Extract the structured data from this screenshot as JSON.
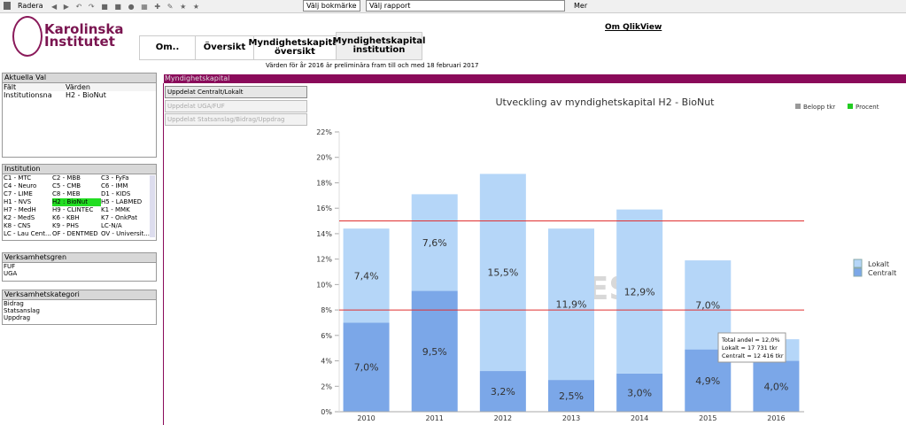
{
  "toolbar": {
    "clear": "Radera",
    "bookmark": "Välj bokmärke",
    "report": "Välj rapport",
    "more": "Mer"
  },
  "header": {
    "logo_line1": "Karolinska",
    "logo_line2": "Institutet",
    "tabs": [
      "Om..",
      "Översikt",
      "Myndighetskapital översikt",
      "Myndighetskapital institution"
    ],
    "about": "Om QlikView",
    "note": "Värden för år 2016 är preliminära fram till och med 18 februari 2017"
  },
  "current_selections": {
    "title": "Aktuella Val",
    "col_field": "Fält",
    "col_values": "Värden",
    "rows": [
      [
        "Institutionsna",
        "H2 - BioNut"
      ]
    ]
  },
  "institution": {
    "title": "Institution",
    "items": [
      "C1 - MTC",
      "C2 - MBB",
      "C3 - FyFa",
      "C4 - Neuro",
      "C5 - CMB",
      "C6 - IMM",
      "C7 - LIME",
      "C8 - MEB",
      "D1 - KIDS",
      "H1 - NVS",
      "H2 : BioNut",
      "H5 - LABMED",
      "H7 - MedH",
      "H9 - CLINTEC",
      "K1 - MMK",
      "K2 - MedS",
      "K6 - KBH",
      "K7 - OnkPat",
      "K8 - CNS",
      "K9 - PHS",
      "LC-N/A",
      "LC - Lau Cent...",
      "OF - DENTMED",
      "OV - Universit..."
    ]
  },
  "verksamhetsgren": {
    "title": "Verksamhetsgren",
    "items": [
      "FUF",
      "UGA"
    ]
  },
  "verksamhetskategori": {
    "title": "Verksamhetskategori",
    "items": [
      "Bidrag",
      "Statsanslag",
      "Uppdrag"
    ]
  },
  "section": {
    "title": "Myndighetskapital",
    "buttons": [
      "Uppdelat Centralt/Lokalt",
      "Uppdelat UGA/FUF",
      "Uppdelat Statsanslag/Bidrag/Uppdrag"
    ]
  },
  "chart_data": {
    "type": "bar",
    "stacked": true,
    "title": "Utveckling av myndighetskapital H2 - BioNut",
    "categories": [
      "2010",
      "2011",
      "2012",
      "2013",
      "2014",
      "2015",
      "2016"
    ],
    "series": [
      {
        "name": "Centralt",
        "color": "#7ba7e8",
        "values": [
          7.0,
          9.5,
          3.2,
          2.5,
          3.0,
          4.9,
          4.0
        ],
        "value_labels": [
          "7,0%",
          "9,5%",
          "3,2%",
          "2,5%",
          "3,0%",
          "4,9%",
          "4,0%"
        ]
      },
      {
        "name": "Lokalt",
        "color": "#b5d6f8",
        "values": [
          7.4,
          7.6,
          15.5,
          11.9,
          12.9,
          7.0,
          1.7
        ],
        "value_labels": [
          "7,4%",
          "7,6%",
          "15,5%",
          "11,9%",
          "12,9%",
          "7,0%",
          null
        ]
      }
    ],
    "ylim": [
      0,
      22
    ],
    "yticks": [
      {
        "value": 0,
        "label": "0%"
      },
      {
        "value": 2,
        "label": "2%"
      },
      {
        "value": 4,
        "label": "4%"
      },
      {
        "value": 6,
        "label": "6%"
      },
      {
        "value": 8,
        "label": "8%"
      },
      {
        "value": 10,
        "label": "10%"
      },
      {
        "value": 12,
        "label": "12%"
      },
      {
        "value": 14,
        "label": "14%"
      },
      {
        "value": 16,
        "label": "16%"
      },
      {
        "value": 18,
        "label": "18%"
      },
      {
        "value": 20,
        "label": "20%"
      },
      {
        "value": 22,
        "label": "22%"
      }
    ],
    "reference_lines": {
      "values": [
        15,
        8
      ],
      "color": "#e03030"
    },
    "watermark": "TEST",
    "toggles": [
      {
        "name": "Belopp tkr",
        "color": "#999999"
      },
      {
        "name": "Procent",
        "color": "#22cc22"
      }
    ],
    "tooltip": [
      "Total andel = 12,0%",
      "Lokalt = 17 731 tkr",
      "Centralt = 12 416 tkr"
    ]
  }
}
